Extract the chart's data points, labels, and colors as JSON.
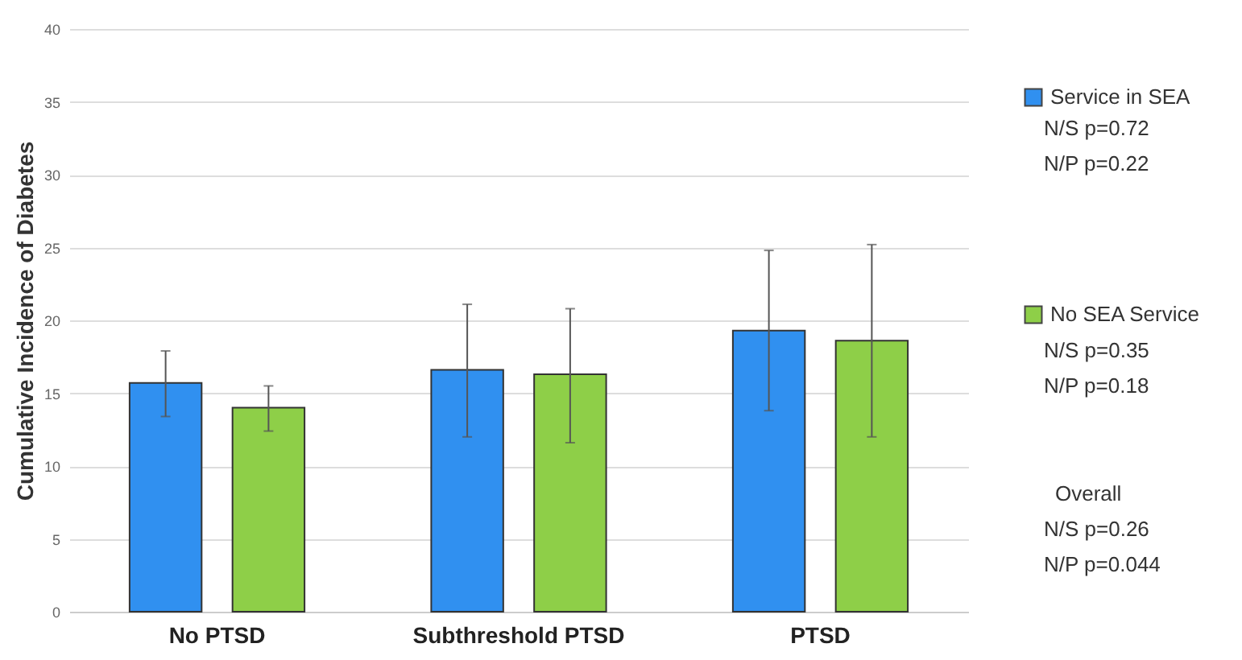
{
  "chart_data": {
    "type": "bar",
    "ylabel": "Cumulative Incidence of Diabetes",
    "categories": [
      "No PTSD",
      "Subthreshold PTSD",
      "PTSD"
    ],
    "series": [
      {
        "name": "Service in SEA",
        "color": "#3090f0",
        "values": [
          15.7,
          16.6,
          19.3
        ],
        "errors": [
          [
            13.4,
            17.9
          ],
          [
            12.0,
            21.1
          ],
          [
            13.8,
            24.8
          ]
        ]
      },
      {
        "name": "No SEA Service",
        "color": "#8ecf48",
        "values": [
          14.0,
          16.3,
          18.6
        ],
        "errors": [
          [
            12.4,
            15.5
          ],
          [
            11.6,
            20.8
          ],
          [
            12.0,
            25.2
          ]
        ]
      }
    ],
    "ylim": [
      0,
      40
    ],
    "yticks": [
      0,
      5,
      10,
      15,
      20,
      25,
      30,
      35,
      40
    ],
    "grid": "y",
    "legend": "right",
    "annotations": [
      "N/S p=0.72",
      "N/P p=0.22",
      "N/S p=0.35",
      "N/P p=0.18",
      "Overall",
      "N/S p=0.26",
      "N/P p=0.044"
    ]
  }
}
